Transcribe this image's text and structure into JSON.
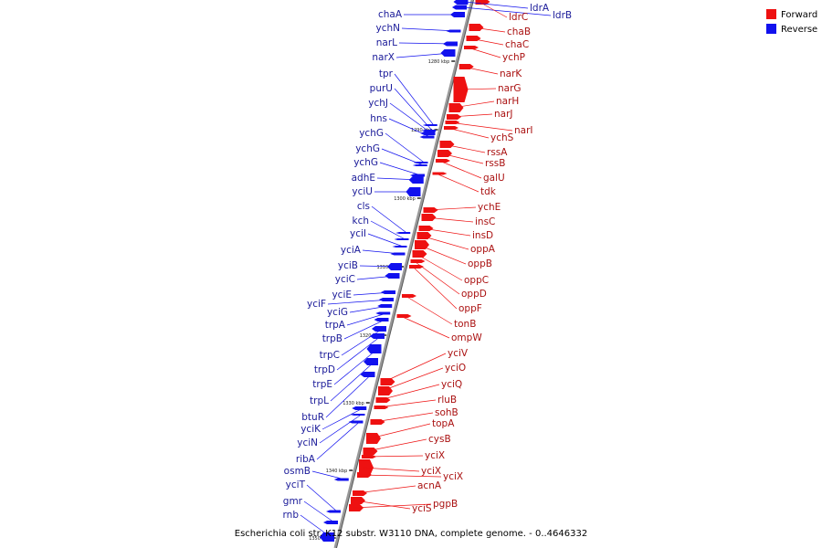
{
  "caption": "Escherichia coli str. K12 substr. W3110 DNA, complete genome. - 0..4646332",
  "legend": [
    {
      "label": "Forward",
      "color": "#ee1111"
    },
    {
      "label": "Reverse",
      "color": "#1111ee"
    }
  ],
  "colors": {
    "forward": "#ee1111",
    "reverse": "#1111ee",
    "axis": "#999999"
  },
  "ticks": [
    "1280 kbp",
    "1290 kbp",
    "1300 kbp",
    "1310 kbp",
    "1320 kbp",
    "1330 kbp",
    "1340 kbp",
    "1350 kbp"
  ],
  "reverse_genes": [
    "ldrA",
    "ldrB",
    "chaA",
    "ychN",
    "narL",
    "narX",
    "tpr",
    "purU",
    "ychJ",
    "hns",
    "ychG",
    "ychG",
    "ychG",
    "adhE",
    "yciU",
    "cls",
    "kch",
    "yciI",
    "yciA",
    "yciB",
    "yciC",
    "yciE",
    "yciF",
    "yciG",
    "trpA",
    "trpB",
    "trpC",
    "trpD",
    "trpE",
    "trpL",
    "btuR",
    "yciK",
    "yciN",
    "ribA",
    "osmB",
    "yciT",
    "gmr",
    "rnb"
  ],
  "forward_genes": [
    "ldrC",
    "chaB",
    "chaC",
    "ychP",
    "narK",
    "narG",
    "narH",
    "narJ",
    "narI",
    "ychS",
    "rssA",
    "rssB",
    "galU",
    "tdk",
    "ychE",
    "insC",
    "insD",
    "oppA",
    "oppB",
    "oppC",
    "oppD",
    "oppF",
    "tonB",
    "ompW",
    "yciV",
    "yciO",
    "yciQ",
    "rluB",
    "sohB",
    "topA",
    "cysB",
    "yciX",
    "yciX",
    "yciX",
    "acnA",
    "yciS",
    "pgpB"
  ]
}
